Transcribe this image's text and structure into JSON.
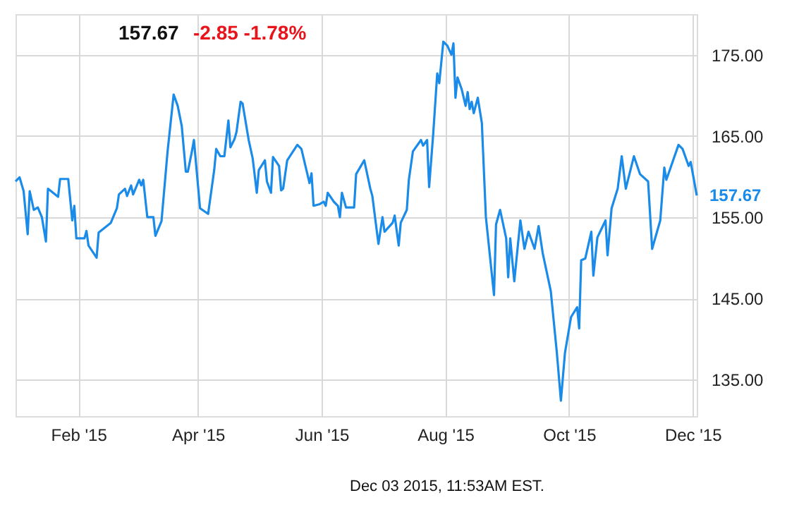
{
  "chart_data": {
    "type": "line",
    "title": "157.67",
    "subtitle": "-2.85  -1.78%",
    "annotations": [
      "Dec 03 2015, 11:53AM EST.",
      {
        "text": "157.67",
        "x": "2015-12-03",
        "y": 157.67
      }
    ],
    "x": [
      "2015-01-01",
      "2015-01-03",
      "2015-01-05",
      "2015-01-07",
      "2015-01-08",
      "2015-01-10",
      "2015-01-12",
      "2015-01-14",
      "2015-01-16",
      "2015-01-17",
      "2015-01-22",
      "2015-01-23",
      "2015-01-27",
      "2015-01-29",
      "2015-01-30",
      "2015-01-31",
      "2015-02-04",
      "2015-02-05",
      "2015-02-06",
      "2015-02-10",
      "2015-02-11",
      "2015-02-17",
      "2015-02-20",
      "2015-02-21",
      "2015-02-24",
      "2015-02-25",
      "2015-02-27",
      "2015-02-28",
      "2015-03-03",
      "2015-03-04",
      "2015-03-05",
      "2015-03-07",
      "2015-03-10",
      "2015-03-11",
      "2015-03-14",
      "2015-03-17",
      "2015-03-20",
      "2015-03-22",
      "2015-03-24",
      "2015-03-26",
      "2015-03-27",
      "2015-03-29",
      "2015-03-30",
      "2015-04-02",
      "2015-04-06",
      "2015-04-09",
      "2015-04-10",
      "2015-04-12",
      "2015-04-14",
      "2015-04-16",
      "2015-04-17",
      "2015-04-19",
      "2015-04-20",
      "2015-04-22",
      "2015-04-23",
      "2015-04-26",
      "2015-04-28",
      "2015-04-30",
      "2015-05-01",
      "2015-05-04",
      "2015-05-05",
      "2015-05-07",
      "2015-05-08",
      "2015-05-11",
      "2015-05-12",
      "2015-05-13",
      "2015-05-15",
      "2015-05-20",
      "2015-05-22",
      "2015-05-26",
      "2015-05-27",
      "2015-05-28",
      "2015-05-31",
      "2015-06-02",
      "2015-06-03",
      "2015-06-04",
      "2015-06-07",
      "2015-06-09",
      "2015-06-10",
      "2015-06-11",
      "2015-06-13",
      "2015-06-17",
      "2015-06-18",
      "2015-06-22",
      "2015-06-25",
      "2015-06-26",
      "2015-06-29",
      "2015-07-01",
      "2015-07-02",
      "2015-07-06",
      "2015-07-07",
      "2015-07-09",
      "2015-07-10",
      "2015-07-13",
      "2015-07-14",
      "2015-07-16",
      "2015-07-20",
      "2015-07-21",
      "2015-07-23",
      "2015-07-24",
      "2015-07-26",
      "2015-07-28",
      "2015-07-29",
      "2015-07-31",
      "2015-08-02",
      "2015-08-04",
      "2015-08-05",
      "2015-08-06",
      "2015-08-07",
      "2015-08-09",
      "2015-08-11",
      "2015-08-12",
      "2015-08-13",
      "2015-08-14",
      "2015-08-15",
      "2015-08-17",
      "2015-08-19",
      "2015-08-21",
      "2015-08-25",
      "2015-08-26",
      "2015-08-28",
      "2015-08-31",
      "2015-09-01",
      "2015-09-02",
      "2015-09-04",
      "2015-09-07",
      "2015-09-09",
      "2015-09-11",
      "2015-09-14",
      "2015-09-15",
      "2015-09-16",
      "2015-09-18",
      "2015-09-22",
      "2015-09-25",
      "2015-09-27",
      "2015-09-29",
      "2015-10-02",
      "2015-10-05",
      "2015-10-06",
      "2015-10-07",
      "2015-10-09",
      "2015-10-12",
      "2015-10-13",
      "2015-10-15",
      "2015-10-19",
      "2015-10-20",
      "2015-10-22",
      "2015-10-25",
      "2015-10-27",
      "2015-10-29",
      "2015-11-02",
      "2015-11-05",
      "2015-11-09",
      "2015-11-11",
      "2015-11-15",
      "2015-11-17",
      "2015-11-18",
      "2015-11-24",
      "2015-11-26",
      "2015-11-29",
      "2015-11-30",
      "2015-12-03"
    ],
    "series": [
      {
        "color": "#1a8be8",
        "values": [
          159.4,
          159.9,
          158.2,
          152.9,
          158.2,
          155.9,
          156.2,
          155.0,
          152.0,
          158.5,
          157.5,
          159.7,
          159.7,
          154.6,
          156.4,
          152.4,
          152.4,
          153.3,
          151.5,
          150.0,
          153.1,
          154.3,
          156.1,
          157.8,
          158.5,
          157.6,
          158.9,
          157.8,
          159.6,
          158.9,
          159.6,
          155.0,
          155.0,
          152.7,
          154.5,
          163.1,
          170.1,
          168.7,
          166.2,
          160.6,
          160.6,
          163.1,
          164.5,
          156.1,
          155.4,
          160.8,
          163.4,
          162.5,
          162.5,
          166.9,
          163.6,
          164.6,
          165.5,
          169.2,
          169.0,
          164.5,
          162.2,
          158.0,
          160.8,
          162.0,
          159.4,
          158.0,
          162.4,
          161.3,
          158.3,
          158.5,
          162.0,
          163.9,
          163.4,
          159.2,
          160.4,
          156.4,
          156.6,
          156.9,
          156.4,
          158.0,
          156.9,
          156.4,
          155.0,
          158.0,
          156.2,
          156.2,
          160.3,
          162.0,
          158.5,
          157.6,
          151.7,
          155.0,
          153.2,
          154.3,
          155.2,
          151.5,
          154.3,
          155.9,
          159.6,
          163.1,
          164.5,
          163.8,
          164.5,
          158.7,
          165.2,
          172.7,
          171.5,
          176.6,
          176.1,
          175.0,
          176.4,
          169.7,
          172.2,
          170.8,
          168.7,
          170.4,
          168.3,
          169.2,
          167.8,
          169.7,
          166.6,
          155.0,
          145.4,
          154.1,
          155.9,
          152.4,
          147.6,
          152.4,
          147.1,
          154.6,
          151.1,
          153.2,
          151.1,
          152.5,
          153.9,
          150.6,
          145.9,
          138.3,
          132.4,
          138.3,
          142.7,
          143.9,
          141.3,
          149.7,
          149.9,
          153.2,
          147.8,
          152.5,
          154.6,
          150.3,
          156.1,
          158.5,
          162.5,
          158.5,
          162.5,
          160.3,
          159.4,
          151.1,
          154.6,
          161.1,
          159.6,
          163.9,
          163.4,
          161.3,
          161.8,
          157.67
        ]
      }
    ],
    "xlim": [
      "2015-01-01",
      "2015-12-03"
    ],
    "ylim": [
      130.5,
      180
    ],
    "xticks": [
      {
        "value": "2015-02-01",
        "label": "Feb '15"
      },
      {
        "value": "2015-04-01",
        "label": "Apr '15"
      },
      {
        "value": "2015-06-01",
        "label": "Jun '15"
      },
      {
        "value": "2015-08-01",
        "label": "Aug '15"
      },
      {
        "value": "2015-10-01",
        "label": "Oct '15"
      },
      {
        "value": "2015-12-01",
        "label": "Dec '15"
      }
    ],
    "yticks": [
      {
        "value": 135,
        "label": "135.00"
      },
      {
        "value": 145,
        "label": "145.00"
      },
      {
        "value": 155,
        "label": "155.00"
      },
      {
        "value": 165,
        "label": "165.00"
      },
      {
        "value": 175,
        "label": "175.00"
      }
    ],
    "grid": true,
    "marker": "none",
    "line_style": "solid"
  }
}
